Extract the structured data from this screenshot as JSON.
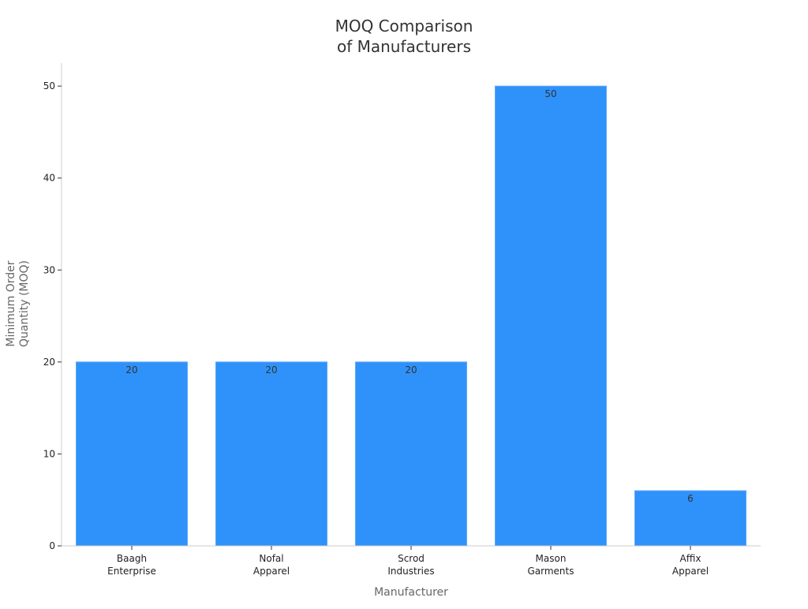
{
  "chart_data": {
    "type": "bar",
    "title": [
      "MOQ Comparison",
      "of Manufacturers"
    ],
    "xlabel": "Manufacturer",
    "ylabel": [
      "Minimum Order",
      "Quantity (MOQ)"
    ],
    "categories": [
      [
        "Baagh",
        "Enterprise"
      ],
      [
        "Nofal",
        "Apparel"
      ],
      [
        "Scrod",
        "Industries"
      ],
      [
        "Mason",
        "Garments"
      ],
      [
        "Affix",
        "Apparel"
      ]
    ],
    "values": [
      20,
      20,
      20,
      50,
      6
    ],
    "data_labels": [
      "20",
      "20",
      "20",
      "50",
      "6"
    ],
    "ylim": [
      0,
      52.5
    ],
    "yticks": [
      0,
      10,
      20,
      30,
      40,
      50
    ],
    "grid": false,
    "legend": "none",
    "colors": {
      "bar": "#2f92fa",
      "bar_edge": "#5aa9fb",
      "axis": "#cccccc",
      "tick": "#333333"
    }
  }
}
